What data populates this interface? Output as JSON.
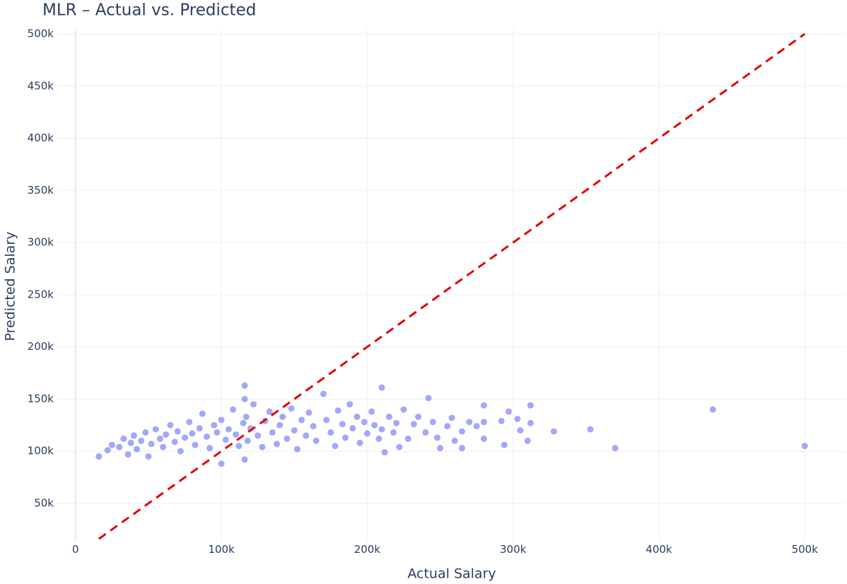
{
  "chart_data": {
    "type": "scatter",
    "title": "MLR – Actual vs. Predicted",
    "xlabel": "Actual Salary",
    "ylabel": "Predicted Salary",
    "xlim": [
      -13000,
      528000
    ],
    "ylim": [
      13000,
      505000
    ],
    "xticks": [
      0,
      {
        "value": 100000,
        "label": "100k"
      },
      {
        "value": 200000,
        "label": "200k"
      },
      {
        "value": 300000,
        "label": "300k"
      },
      {
        "value": 400000,
        "label": "400k"
      },
      {
        "value": 500000,
        "label": "500k"
      }
    ],
    "yticks": [
      {
        "value": 50000,
        "label": "50k"
      },
      {
        "value": 100000,
        "label": "100k"
      },
      {
        "value": 150000,
        "label": "150k"
      },
      {
        "value": 200000,
        "label": "200k"
      },
      {
        "value": 250000,
        "label": "250k"
      },
      {
        "value": 300000,
        "label": "300k"
      },
      {
        "value": 350000,
        "label": "350k"
      },
      {
        "value": 400000,
        "label": "400k"
      },
      {
        "value": 450000,
        "label": "450k"
      },
      {
        "value": 500000,
        "label": "500k"
      }
    ],
    "grid": true,
    "series": [
      {
        "mode": "markers",
        "color": "#636efa",
        "opacity": 0.6,
        "x": [
          16000,
          22000,
          25000,
          30000,
          33000,
          36000,
          38000,
          40000,
          42000,
          45000,
          48000,
          50000,
          52000,
          55000,
          58000,
          60000,
          62000,
          65000,
          68000,
          70000,
          72000,
          75000,
          78000,
          80000,
          82000,
          85000,
          87000,
          90000,
          92000,
          95000,
          97000,
          100000,
          100000,
          103000,
          105000,
          108000,
          110000,
          112000,
          115000,
          116000,
          116000,
          116000,
          117000,
          118000,
          120000,
          122000,
          125000,
          128000,
          130000,
          133000,
          135000,
          138000,
          140000,
          142000,
          145000,
          148000,
          150000,
          152000,
          155000,
          158000,
          160000,
          163000,
          165000,
          170000,
          172000,
          175000,
          178000,
          180000,
          183000,
          185000,
          188000,
          190000,
          193000,
          195000,
          198000,
          200000,
          203000,
          205000,
          208000,
          210000,
          210000,
          212000,
          215000,
          218000,
          220000,
          222000,
          225000,
          228000,
          232000,
          235000,
          240000,
          242000,
          245000,
          248000,
          250000,
          255000,
          258000,
          260000,
          265000,
          265000,
          270000,
          275000,
          280000,
          280000,
          280000,
          292000,
          294000,
          297000,
          303000,
          305000,
          310000,
          312000,
          312000,
          328000,
          353000,
          370000,
          437000,
          500000
        ],
        "values": [
          95000,
          101000,
          106000,
          104000,
          112000,
          97000,
          108000,
          115000,
          102000,
          110000,
          118000,
          95000,
          107000,
          121000,
          112000,
          104000,
          116000,
          125000,
          109000,
          119000,
          100000,
          113000,
          128000,
          117000,
          106000,
          122000,
          136000,
          114000,
          103000,
          125000,
          118000,
          88000,
          130000,
          111000,
          121000,
          140000,
          116000,
          105000,
          127000,
          163000,
          92000,
          150000,
          133000,
          110000,
          122000,
          145000,
          115000,
          104000,
          129000,
          138000,
          118000,
          107000,
          125000,
          133000,
          112000,
          141000,
          120000,
          102000,
          130000,
          115000,
          137000,
          124000,
          110000,
          155000,
          130000,
          118000,
          105000,
          139000,
          126000,
          113000,
          145000,
          122000,
          133000,
          108000,
          128000,
          117000,
          138000,
          125000,
          112000,
          161000,
          121000,
          99000,
          133000,
          118000,
          127000,
          104000,
          140000,
          112000,
          126000,
          133000,
          118000,
          151000,
          128000,
          113000,
          103000,
          124000,
          132000,
          110000,
          103000,
          119000,
          128000,
          124000,
          144000,
          112000,
          128000,
          129000,
          106000,
          138000,
          131000,
          120000,
          110000,
          144000,
          127000,
          119000,
          121000,
          103000,
          140000,
          105000
        ]
      },
      {
        "mode": "lines",
        "color": "#e60000",
        "dash": true,
        "x": [
          16000,
          500000
        ],
        "values": [
          16000,
          500000
        ]
      }
    ]
  }
}
